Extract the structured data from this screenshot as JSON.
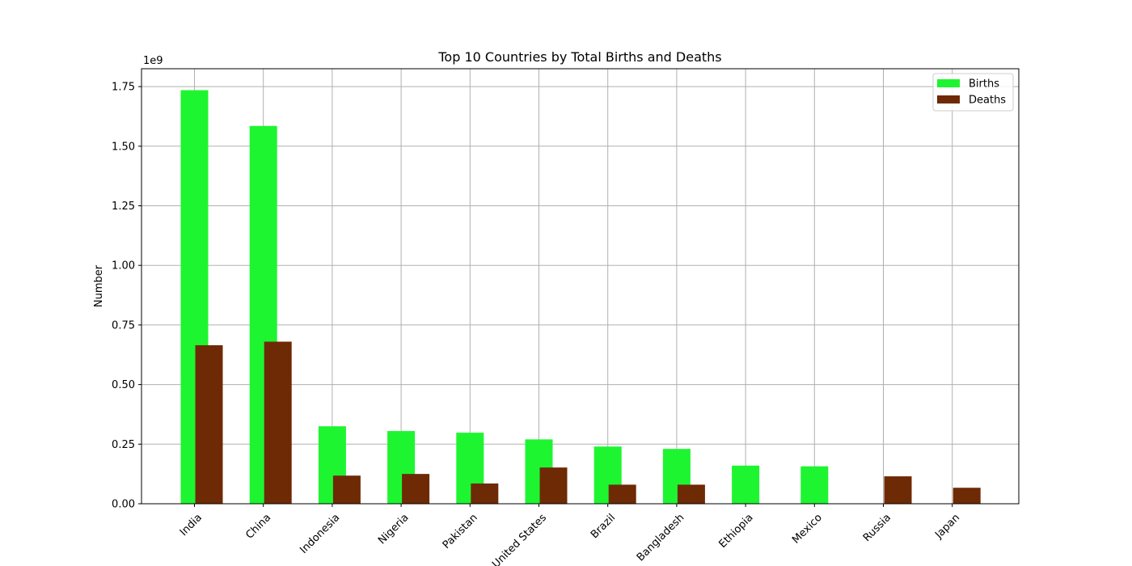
{
  "chart_data": {
    "type": "bar",
    "title": "Top 10 Countries by Total Births and Deaths",
    "xlabel": "",
    "ylabel": "Number",
    "scale_label": "1e9",
    "categories": [
      "India",
      "China",
      "Indonesia",
      "Nigeria",
      "Pakistan",
      "United States",
      "Brazil",
      "Bangladesh",
      "Ethiopia",
      "Mexico",
      "Russia",
      "Japan"
    ],
    "series": [
      {
        "name": "Births",
        "color": "#1ef531",
        "values": [
          1.735,
          1.585,
          0.325,
          0.305,
          0.298,
          0.27,
          0.24,
          0.23,
          0.16,
          0.157,
          null,
          null
        ]
      },
      {
        "name": "Deaths",
        "color": "#6d2a04",
        "values": [
          0.665,
          0.68,
          0.118,
          0.125,
          0.085,
          0.152,
          0.08,
          0.08,
          null,
          null,
          0.115,
          0.067
        ]
      }
    ],
    "ylim": [
      0,
      1.825
    ],
    "yticks": [
      "0.00",
      "0.25",
      "0.50",
      "0.75",
      "1.00",
      "1.25",
      "1.50",
      "1.75"
    ],
    "ytick_values": [
      0,
      0.25,
      0.5,
      0.75,
      1.0,
      1.25,
      1.5,
      1.75
    ],
    "grid": true,
    "legend_position": "top-right"
  }
}
